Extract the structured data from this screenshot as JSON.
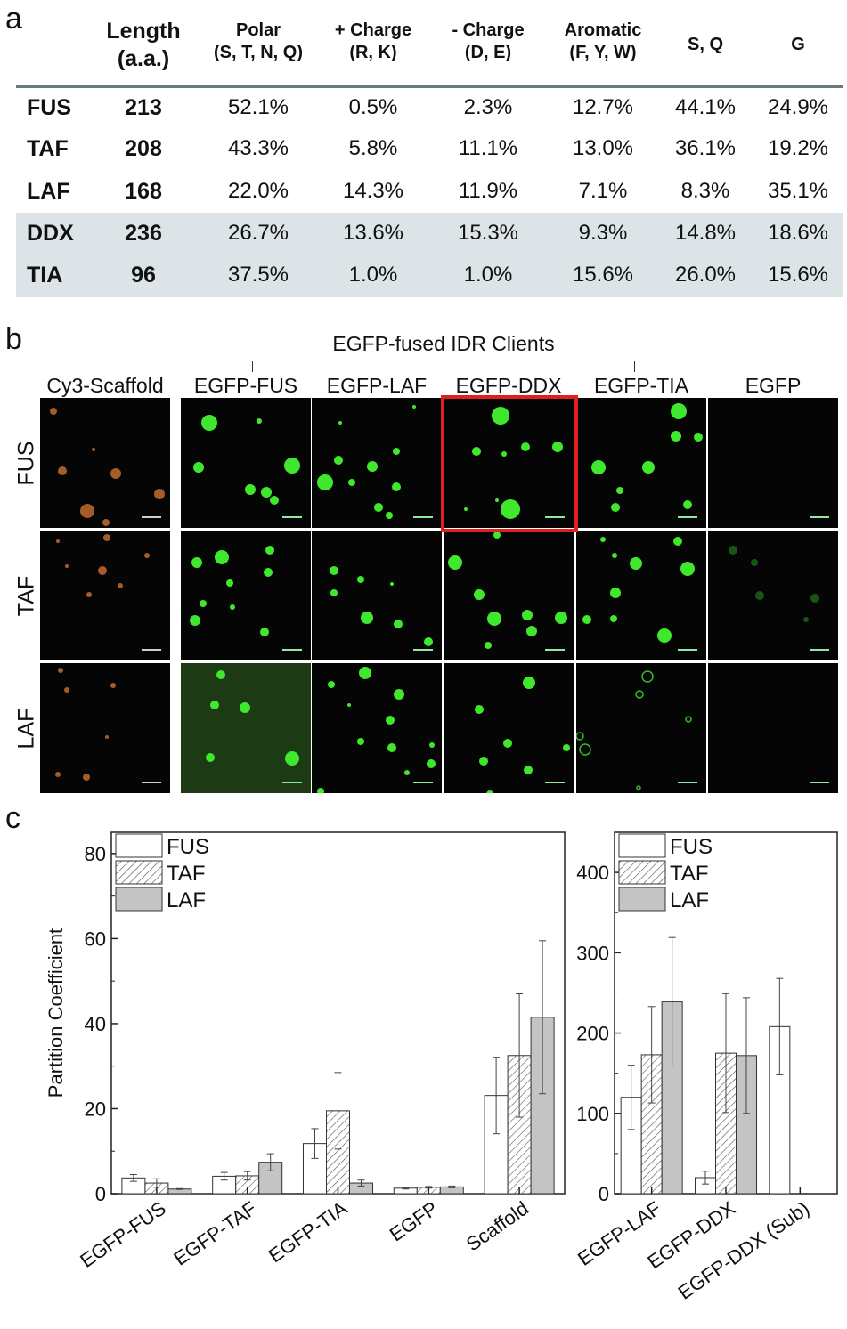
{
  "panel_labels": {
    "a": "a",
    "b": "b",
    "c": "c"
  },
  "table": {
    "headers": [
      {
        "l1": "Length",
        "l2": "(a.a.)"
      },
      {
        "l1": "Polar",
        "l2": "(S, T, N, Q)"
      },
      {
        "l1": "+ Charge",
        "l2": "(R, K)"
      },
      {
        "l1": "- Charge",
        "l2": "(D, E)"
      },
      {
        "l1": "Aromatic",
        "l2": "(F, Y, W)"
      },
      {
        "l1": "S, Q",
        "l2": ""
      },
      {
        "l1": "G",
        "l2": ""
      }
    ],
    "rows": [
      {
        "name": "FUS",
        "length": "213",
        "values": [
          "52.1%",
          "0.5%",
          "2.3%",
          "12.7%",
          "44.1%",
          "24.9%"
        ],
        "shaded": false
      },
      {
        "name": "TAF",
        "length": "208",
        "values": [
          "43.3%",
          "5.8%",
          "11.1%",
          "13.0%",
          "36.1%",
          "19.2%"
        ],
        "shaded": false
      },
      {
        "name": "LAF",
        "length": "168",
        "values": [
          "22.0%",
          "14.3%",
          "11.9%",
          "7.1%",
          "8.3%",
          "35.1%"
        ],
        "shaded": false
      },
      {
        "name": "DDX",
        "length": "236",
        "values": [
          "26.7%",
          "13.6%",
          "15.3%",
          "9.3%",
          "14.8%",
          "18.6%"
        ],
        "shaded": true
      },
      {
        "name": "TIA",
        "length": "96",
        "values": [
          "37.5%",
          "1.0%",
          "1.0%",
          "15.6%",
          "26.0%",
          "15.6%"
        ],
        "shaded": true
      }
    ]
  },
  "micrographs": {
    "group_label": "EGFP-fused IDR Clients",
    "columns": [
      "Cy3-Scaffold",
      "EGFP-FUS",
      "EGFP-LAF",
      "EGFP-DDX",
      "EGFP-TIA",
      "EGFP"
    ],
    "rows": [
      "FUS",
      "TAF",
      "LAF"
    ],
    "highlight": {
      "row": "FUS",
      "column": "EGFP-DDX",
      "color": "#e0201c"
    },
    "colors": {
      "scaffold": "#d97a35",
      "egfp": "#3fe82c",
      "background": "#050505",
      "scalebar": "#8fe9a5"
    }
  },
  "chart_data": [
    {
      "type": "bar",
      "ylabel": "Partition Coefficient",
      "xlabel": "",
      "ylim": [
        0,
        85
      ],
      "yticks": [
        0,
        20,
        40,
        60,
        80
      ],
      "categories": [
        "EGFP-FUS",
        "EGFP-TAF",
        "EGFP-TIA",
        "EGFP",
        "Scaffold"
      ],
      "legend": {
        "placement": "top-left"
      },
      "series": [
        {
          "name": "FUS",
          "style": "white",
          "values": [
            3.7,
            4.1,
            11.8,
            1.3,
            23.1
          ],
          "errors": [
            0.8,
            0.9,
            3.5,
            0.2,
            9.0
          ]
        },
        {
          "name": "TAF",
          "style": "hatched",
          "values": [
            2.5,
            4.2,
            19.5,
            1.5,
            32.5
          ],
          "errors": [
            1.0,
            1.0,
            9.0,
            0.2,
            14.5
          ]
        },
        {
          "name": "LAF",
          "style": "gray",
          "values": [
            1.1,
            7.4,
            2.5,
            1.6,
            41.5
          ],
          "errors": [
            0.1,
            2.0,
            0.7,
            0.2,
            18.0
          ]
        }
      ]
    },
    {
      "type": "bar",
      "ylabel": "",
      "xlabel": "",
      "ylim": [
        0,
        450
      ],
      "yticks": [
        0,
        100,
        200,
        300,
        400
      ],
      "categories": [
        "EGFP-LAF",
        "EGFP-DDX",
        "EGFP-DDX (Sub)"
      ],
      "legend": {
        "placement": "top-left"
      },
      "series": [
        {
          "name": "FUS",
          "style": "white",
          "values": [
            120,
            20,
            208
          ],
          "errors": [
            40,
            8,
            60
          ]
        },
        {
          "name": "TAF",
          "style": "hatched",
          "values": [
            173,
            175,
            null
          ],
          "errors": [
            60,
            74,
            null
          ]
        },
        {
          "name": "LAF",
          "style": "gray",
          "values": [
            239,
            172,
            null
          ],
          "errors": [
            80,
            72,
            null
          ]
        }
      ]
    }
  ]
}
